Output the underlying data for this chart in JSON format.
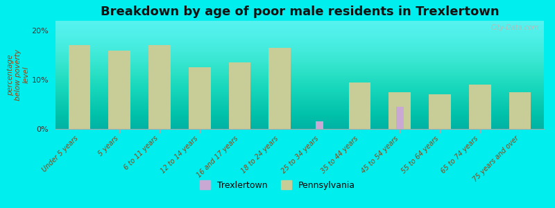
{
  "title": "Breakdown by age of poor male residents in Trexlertown",
  "ylabel": "percentage\nbelow poverty\nlevel",
  "categories": [
    "Under 5 years",
    "5 years",
    "6 to 11 years",
    "12 to 14 years",
    "16 and 17 years",
    "18 to 24 years",
    "25 to 34 years",
    "35 to 44 years",
    "45 to 54 years",
    "55 to 64 years",
    "65 to 74 years",
    "75 years and over"
  ],
  "trexlertown": [
    0,
    0,
    0,
    0,
    0,
    0,
    1.5,
    0,
    4.5,
    0,
    0,
    0
  ],
  "pennsylvania": [
    17.0,
    16.0,
    17.0,
    12.5,
    13.5,
    16.5,
    0,
    9.5,
    7.5,
    7.0,
    9.0,
    7.5
  ],
  "trexlertown_color": "#c9a8d4",
  "pennsylvania_color": "#c8cc96",
  "background_color": "#00eeee",
  "ylim": [
    0,
    22
  ],
  "yticks": [
    0,
    10,
    20
  ],
  "ytick_labels": [
    "0%",
    "10%",
    "20%"
  ],
  "bar_width": 0.55,
  "title_fontsize": 13,
  "ylabel_fontsize": 7.5,
  "tick_fontsize": 7,
  "legend_fontsize": 9,
  "watermark": "City-Data.com"
}
